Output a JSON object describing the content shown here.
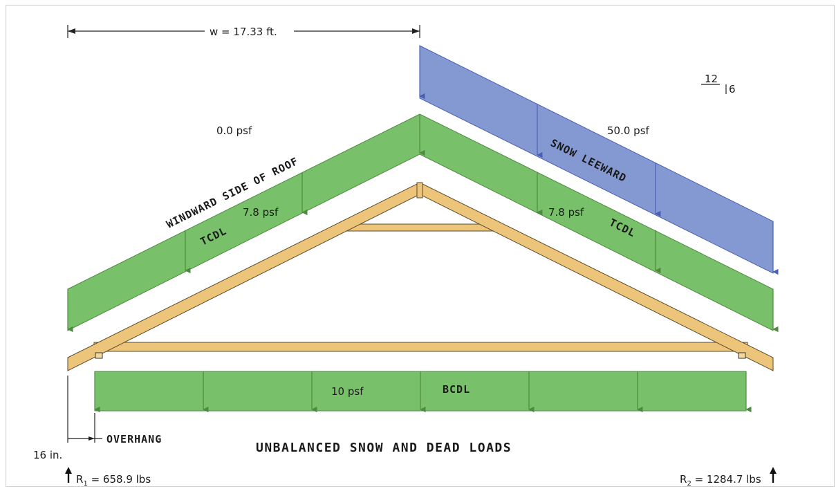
{
  "diagram": {
    "width_label": "w = 17.33 ft.",
    "pitch": {
      "run": "12",
      "rise": "6"
    },
    "windward_snow_load": "0.0 psf",
    "leeward_snow_load": "50.0 psf",
    "windward_side_label": "Windward side of roof",
    "snow_leeward_label": "Snow leeward",
    "tcdl_left_value": "7.8 psf",
    "tcdl_right_value": "7.8 psf",
    "tcdl_left_label": "TCDL",
    "tcdl_right_label": "TCDL",
    "bcdl_value": "10 psf",
    "bcdl_label": "BCDL",
    "overhang_label": "Overhang",
    "overhang_value": "16 in.",
    "title": "Unbalanced snow and dead loads",
    "r1": {
      "symbol": "R",
      "sub": "1",
      "value": " = 658.9 lbs"
    },
    "r2": {
      "symbol": "R",
      "sub": "2",
      "value": " = 1284.7 lbs"
    }
  },
  "colors": {
    "green_fill": "#78c16a",
    "green_stroke": "#4e8a40",
    "blue_fill": "#8499d2",
    "blue_stroke": "#4a5fb4",
    "wood_fill": "#edc57a",
    "wood_stroke": "#5a4a2a"
  }
}
